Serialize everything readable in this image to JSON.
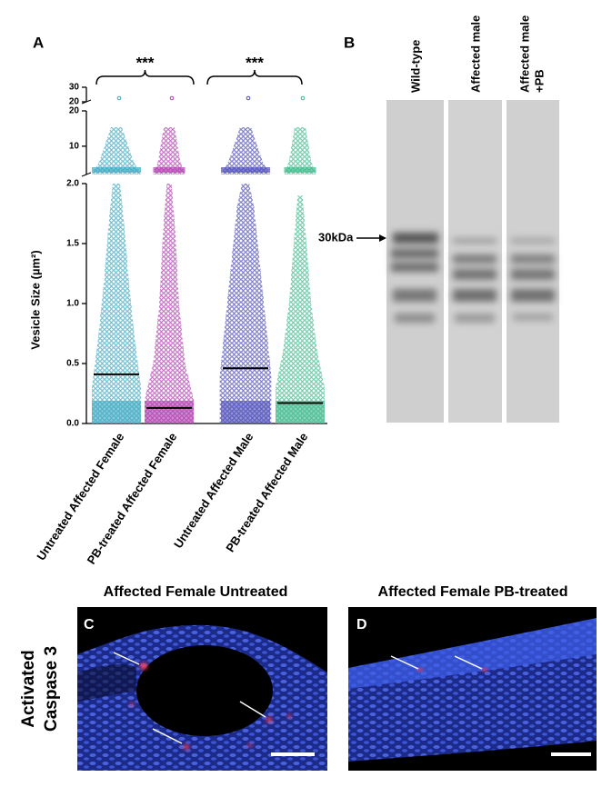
{
  "chart_data": {
    "type": "dot",
    "panel_label": "A",
    "y_label": "Vesicle Size (µm²)",
    "categories": [
      "Untreated Affected Female",
      "PB-treated Affected Female",
      "Untreated Affected Male",
      "PB-treated Affected Male"
    ],
    "colors": [
      "#3aa6c0",
      "#b03cb0",
      "#4b4bb8",
      "#3cb88a"
    ],
    "values": [
      0.41,
      0.13,
      0.46,
      0.17
    ],
    "ylim": [
      0,
      2
    ],
    "yticks": [
      {
        "value": 0,
        "label": "0.0"
      },
      0.5,
      {
        "value": 1,
        "label": "1.0"
      },
      1.5,
      {
        "value": 2,
        "label": "2.0"
      }
    ],
    "ybreaks": [
      {
        "ylim": [
          2,
          20
        ],
        "yticks": [
          10,
          20
        ]
      },
      {
        "ylim": [
          20,
          30
        ],
        "yticks": [
          20,
          30
        ]
      }
    ],
    "annotations": [
      "***",
      "***"
    ]
  },
  "blot": {
    "panel_label": "B",
    "lanes": [
      [
        "Wild-type"
      ],
      [
        "Affected male"
      ],
      [
        "Affected male",
        "+PB"
      ]
    ],
    "marker": "30kDa"
  },
  "micrographs": {
    "row_label": [
      "Activated",
      "Caspase 3"
    ],
    "panels": [
      {
        "panel_label": "C",
        "title": "Affected Female Untreated"
      },
      {
        "panel_label": "D",
        "title": "Affected Female PB-treated"
      }
    ]
  }
}
